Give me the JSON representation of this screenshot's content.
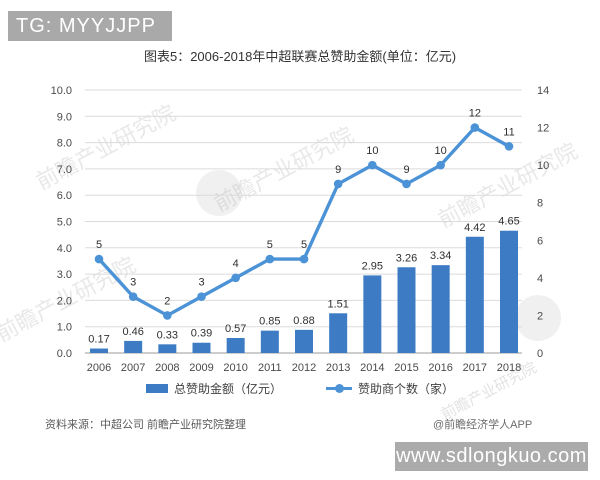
{
  "badge": {
    "text": "TG: MYYJJPP"
  },
  "title": "图表5：2006-2018年中超联赛总赞助金额(单位：亿元)",
  "watermark": {
    "text": "前瞻产业研究院"
  },
  "chart_data": {
    "type": "bar",
    "subtype": "bar-line-combo",
    "title": "图表5：2006-2018年中超联赛总赞助金额(单位：亿元)",
    "categories": [
      "2006",
      "2007",
      "2008",
      "2009",
      "2010",
      "2011",
      "2012",
      "2013",
      "2014",
      "2015",
      "2016",
      "2017",
      "2018"
    ],
    "series": [
      {
        "name": "总赞助金额（亿元）",
        "type": "bar",
        "axis": "left",
        "color": "#3d7cc4",
        "values": [
          0.17,
          0.46,
          0.33,
          0.39,
          0.57,
          0.85,
          0.88,
          1.51,
          2.95,
          3.26,
          3.34,
          4.42,
          4.65
        ]
      },
      {
        "name": "赞助商个数（家）",
        "type": "line",
        "axis": "right",
        "color": "#4b92d6",
        "values": [
          5,
          3,
          2,
          3,
          4,
          5,
          5,
          9,
          10,
          9,
          10,
          12,
          11
        ]
      }
    ],
    "left_axis": {
      "min": 0,
      "max": 10,
      "step": 1,
      "tick_labels": [
        "0.0",
        "1.0",
        "2.0",
        "3.0",
        "4.0",
        "5.0",
        "6.0",
        "7.0",
        "8.0",
        "9.0",
        "10.0"
      ]
    },
    "right_axis": {
      "min": 0,
      "max": 14,
      "step": 2,
      "tick_labels": [
        "0",
        "2",
        "4",
        "6",
        "8",
        "10",
        "12",
        "14"
      ]
    },
    "grid": true,
    "legend_position": "bottom"
  },
  "footer": {
    "source": "资料来源：中超公司 前瞻产业研究院整理",
    "credit": "@前瞻经济学人APP"
  },
  "banner": {
    "url_text": "www.sdlongkuo.com"
  }
}
